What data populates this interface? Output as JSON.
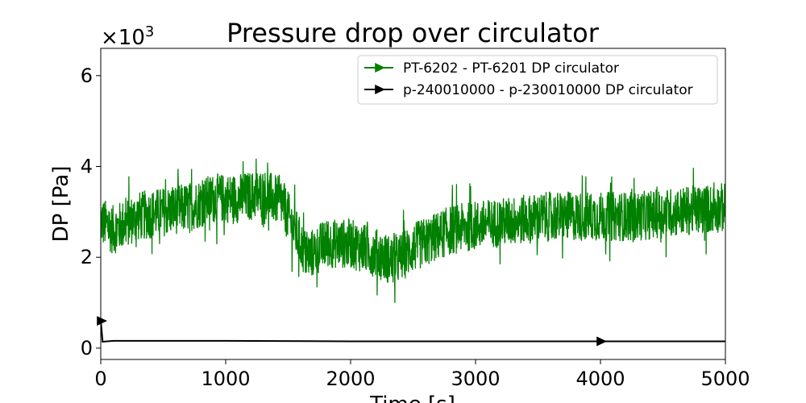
{
  "chart_data": {
    "type": "line",
    "title": "Pressure drop over circulator",
    "xlabel": "Time [s]",
    "ylabel": "DP [Pa]",
    "y_multiplier_label": "×10",
    "y_multiplier_exponent": "3",
    "xlim": [
      0,
      5000
    ],
    "ylim": [
      -0.25,
      6.6
    ],
    "x_ticks": [
      0,
      1000,
      2000,
      3000,
      4000,
      5000
    ],
    "x_tick_labels": [
      "0",
      "1000",
      "2000",
      "3000",
      "4000",
      "5000"
    ],
    "y_ticks": [
      0,
      2,
      4,
      6
    ],
    "y_tick_labels": [
      "0",
      "2",
      "4",
      "6"
    ],
    "grid": false,
    "legend_position": "top-right",
    "series": [
      {
        "name": "PT-6202 - PT-6201 DP circulator",
        "color": "#008000",
        "marker": "right-triangle",
        "noisy": true,
        "noise_amplitude": 0.55,
        "x": [
          0,
          100,
          300,
          500,
          700,
          900,
          1100,
          1300,
          1450,
          1550,
          1650,
          1800,
          2000,
          2200,
          2350,
          2500,
          2800,
          3000,
          3300,
          3600,
          4000,
          4300,
          4600,
          5000
        ],
        "y": [
          2.8,
          2.6,
          2.9,
          3.0,
          3.1,
          3.3,
          3.3,
          3.4,
          3.2,
          2.6,
          2.0,
          2.3,
          2.3,
          2.1,
          1.9,
          2.2,
          2.6,
          2.7,
          2.8,
          2.9,
          2.9,
          2.9,
          3.0,
          3.1
        ]
      },
      {
        "name": "p-240010000 - p-230010000 DP circulator",
        "color": "#000000",
        "marker": "right-triangle",
        "noisy": false,
        "x": [
          0,
          5,
          15,
          100,
          500,
          1000,
          2000,
          3000,
          4000,
          5000
        ],
        "y": [
          0.6,
          0.45,
          0.14,
          0.16,
          0.16,
          0.16,
          0.15,
          0.15,
          0.15,
          0.15
        ],
        "marker_x": [
          0,
          4000
        ]
      }
    ]
  }
}
